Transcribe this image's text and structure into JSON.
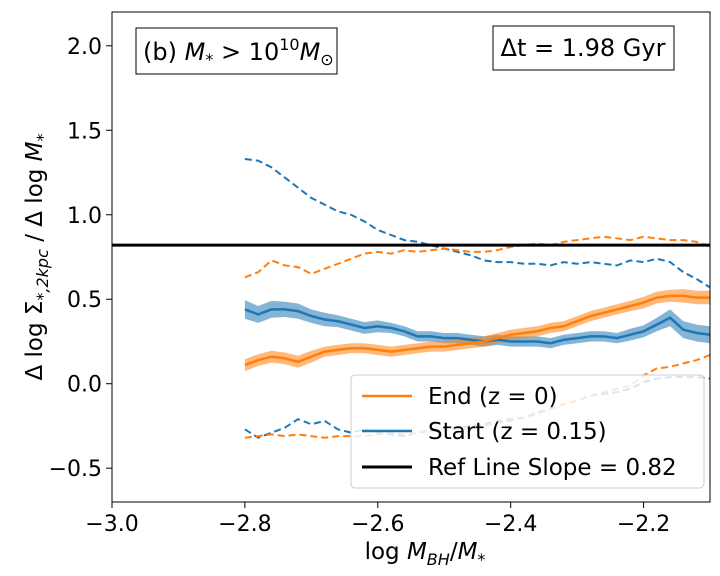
{
  "chart_data": {
    "type": "line",
    "title": "",
    "xlabel": "log M_BH/M_*",
    "ylabel": "Δ log Σ_*,2kpc / Δ log M_*",
    "xlim": [
      -3.0,
      -2.1
    ],
    "ylim": [
      -0.7,
      2.2
    ],
    "xticks": [
      -3.0,
      -2.8,
      -2.6,
      -2.4,
      -2.2
    ],
    "xtick_labels": [
      "−3.0",
      "−2.8",
      "−2.6",
      "−2.4",
      "−2.2"
    ],
    "yticks": [
      -0.5,
      0.0,
      0.5,
      1.0,
      1.5,
      2.0
    ],
    "ytick_labels": [
      "−0.5",
      "0.0",
      "0.5",
      "1.0",
      "1.5",
      "2.0"
    ],
    "panel_label": "(b) M* > 10¹⁰ M⊙",
    "panel_label_parts": {
      "prefix": "(b) ",
      "var": "M",
      "sub": "*",
      "gt": " > 10",
      "exp": "10",
      "m": "M",
      "sun": "⊙"
    },
    "time_label": "Δt = 1.98 Gyr",
    "colors": {
      "end": "#ff7f0e",
      "start": "#1f77b4",
      "ref": "#000000"
    },
    "legend": [
      "End (z = 0)",
      "Start (z = 0.15)",
      "Ref Line Slope = 0.82"
    ],
    "ref_line": {
      "name": "Ref Line Slope = 0.82",
      "y": 0.82
    },
    "x": [
      -2.8,
      -2.78,
      -2.76,
      -2.74,
      -2.72,
      -2.7,
      -2.68,
      -2.66,
      -2.64,
      -2.62,
      -2.6,
      -2.58,
      -2.56,
      -2.54,
      -2.52,
      -2.5,
      -2.48,
      -2.46,
      -2.44,
      -2.42,
      -2.4,
      -2.38,
      -2.36,
      -2.34,
      -2.32,
      -2.3,
      -2.28,
      -2.26,
      -2.24,
      -2.22,
      -2.2,
      -2.18,
      -2.16,
      -2.14,
      -2.12,
      -2.1
    ],
    "series": [
      {
        "name": "End (z = 0)",
        "median": [
          0.11,
          0.14,
          0.16,
          0.15,
          0.13,
          0.16,
          0.19,
          0.2,
          0.21,
          0.21,
          0.2,
          0.19,
          0.2,
          0.21,
          0.22,
          0.22,
          0.23,
          0.24,
          0.25,
          0.27,
          0.29,
          0.3,
          0.31,
          0.33,
          0.34,
          0.37,
          0.4,
          0.42,
          0.44,
          0.46,
          0.48,
          0.51,
          0.52,
          0.52,
          0.51,
          0.51
        ],
        "band_half_width": [
          0.035,
          0.035,
          0.035,
          0.035,
          0.035,
          0.035,
          0.03,
          0.03,
          0.03,
          0.03,
          0.03,
          0.03,
          0.03,
          0.03,
          0.03,
          0.03,
          0.03,
          0.03,
          0.03,
          0.03,
          0.03,
          0.03,
          0.03,
          0.03,
          0.03,
          0.03,
          0.03,
          0.03,
          0.03,
          0.03,
          0.035,
          0.035,
          0.035,
          0.04,
          0.04,
          0.04
        ],
        "upper_dashed": [
          0.63,
          0.66,
          0.73,
          0.7,
          0.69,
          0.65,
          0.68,
          0.71,
          0.74,
          0.77,
          0.78,
          0.77,
          0.79,
          0.78,
          0.79,
          0.8,
          0.79,
          0.78,
          0.78,
          0.79,
          0.81,
          0.82,
          0.83,
          0.82,
          0.84,
          0.85,
          0.86,
          0.87,
          0.86,
          0.85,
          0.87,
          0.86,
          0.85,
          0.85,
          0.84,
          0.81
        ],
        "lower_dashed": [
          -0.32,
          -0.31,
          -0.3,
          -0.31,
          -0.3,
          -0.31,
          -0.32,
          -0.31,
          -0.31,
          -0.31,
          -0.3,
          -0.29,
          -0.3,
          -0.29,
          -0.27,
          -0.27,
          -0.27,
          -0.26,
          -0.25,
          -0.23,
          -0.22,
          -0.2,
          -0.18,
          -0.15,
          -0.12,
          -0.1,
          -0.07,
          -0.05,
          -0.03,
          -0.01,
          0.05,
          0.09,
          0.1,
          0.12,
          0.14,
          0.17
        ]
      },
      {
        "name": "Start (z = 0.15)",
        "median": [
          0.44,
          0.41,
          0.44,
          0.44,
          0.43,
          0.4,
          0.38,
          0.37,
          0.35,
          0.33,
          0.34,
          0.33,
          0.31,
          0.28,
          0.28,
          0.27,
          0.27,
          0.26,
          0.25,
          0.26,
          0.25,
          0.25,
          0.25,
          0.24,
          0.26,
          0.27,
          0.28,
          0.28,
          0.27,
          0.29,
          0.31,
          0.35,
          0.39,
          0.32,
          0.3,
          0.29
        ],
        "band_half_width": [
          0.055,
          0.05,
          0.05,
          0.045,
          0.045,
          0.04,
          0.04,
          0.035,
          0.035,
          0.035,
          0.035,
          0.03,
          0.03,
          0.03,
          0.03,
          0.03,
          0.03,
          0.03,
          0.03,
          0.03,
          0.03,
          0.03,
          0.03,
          0.03,
          0.03,
          0.03,
          0.03,
          0.03,
          0.03,
          0.035,
          0.035,
          0.04,
          0.05,
          0.05,
          0.05,
          0.05
        ],
        "upper_dashed": [
          1.33,
          1.32,
          1.28,
          1.22,
          1.16,
          1.1,
          1.06,
          1.02,
          1.0,
          0.96,
          0.91,
          0.88,
          0.85,
          0.84,
          0.82,
          0.8,
          0.78,
          0.76,
          0.73,
          0.72,
          0.72,
          0.71,
          0.71,
          0.7,
          0.72,
          0.71,
          0.72,
          0.71,
          0.7,
          0.73,
          0.72,
          0.74,
          0.72,
          0.66,
          0.62,
          0.57
        ],
        "lower_dashed": [
          -0.27,
          -0.32,
          -0.29,
          -0.26,
          -0.21,
          -0.24,
          -0.22,
          -0.27,
          -0.29,
          -0.27,
          -0.29,
          -0.3,
          -0.31,
          -0.29,
          -0.28,
          -0.27,
          -0.26,
          -0.25,
          -0.24,
          -0.22,
          -0.21,
          -0.2,
          -0.17,
          -0.15,
          -0.12,
          -0.1,
          -0.07,
          -0.06,
          -0.05,
          -0.03,
          0.01,
          0.03,
          0.04,
          0.04,
          0.04,
          0.03
        ]
      }
    ]
  }
}
